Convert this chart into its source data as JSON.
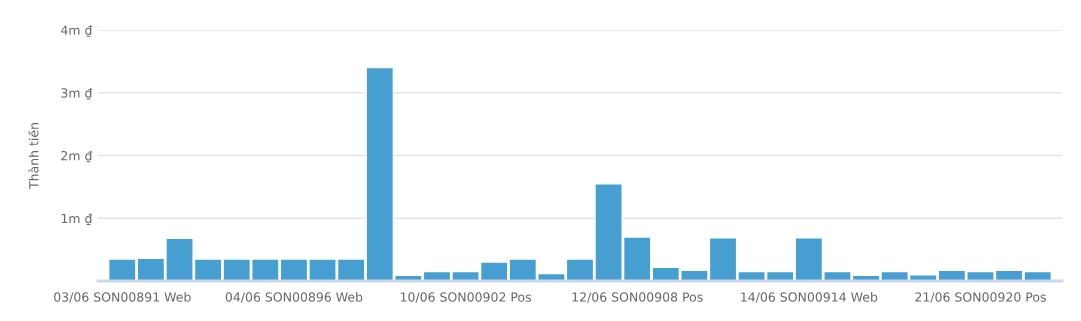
{
  "chart_data": {
    "type": "bar",
    "ylabel": "Thành tiền",
    "categories": [
      "03/06 SON00891 Web",
      null,
      null,
      null,
      null,
      null,
      "04/06 SON00896 Web",
      null,
      null,
      null,
      null,
      null,
      "10/06 SON00902 Pos",
      null,
      null,
      null,
      null,
      null,
      "12/06 SON00908 Pos",
      null,
      null,
      null,
      null,
      null,
      "14/06 SON00914 Web",
      null,
      null,
      null,
      null,
      null,
      "21/06 SON00920 Pos",
      null,
      null
    ],
    "values": [
      350000,
      360000,
      680000,
      350000,
      350000,
      350000,
      350000,
      350000,
      350000,
      3400000,
      90000,
      150000,
      150000,
      300000,
      350000,
      120000,
      350000,
      1550000,
      700000,
      220000,
      170000,
      690000,
      150000,
      150000,
      690000,
      150000,
      90000,
      150000,
      100000,
      170000,
      150000,
      170000,
      150000
    ],
    "color": "#479ed1",
    "ylim": [
      0,
      4000000
    ],
    "yticks": [
      {
        "value": 1000000,
        "label": "1m ₫"
      },
      {
        "value": 2000000,
        "label": "2m ₫"
      },
      {
        "value": 3000000,
        "label": "3m ₫"
      },
      {
        "value": 4000000,
        "label": "4m ₫"
      }
    ],
    "grid": "y",
    "legend": false
  }
}
